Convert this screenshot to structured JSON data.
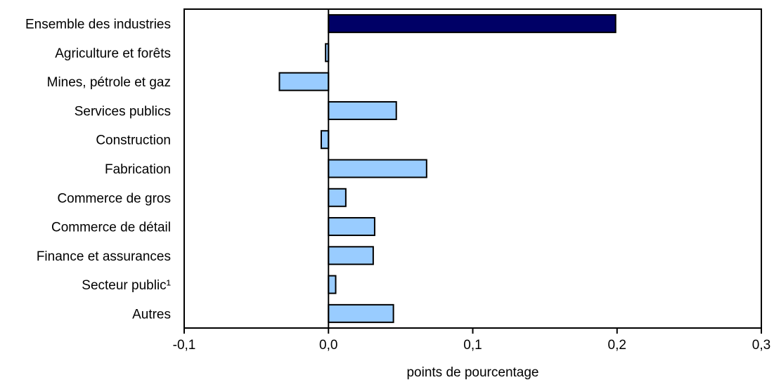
{
  "chart_data": {
    "type": "bar",
    "orientation": "horizontal",
    "categories": [
      "Ensemble des industries",
      "Agriculture et forêts",
      "Mines, pétrole et gaz",
      "Services publics",
      "Construction",
      "Fabrication",
      "Commerce de gros",
      "Commerce de détail",
      "Finance et assurances",
      "Secteur public¹",
      "Autres"
    ],
    "values": [
      0.199,
      -0.002,
      -0.034,
      0.047,
      -0.005,
      0.068,
      0.012,
      0.032,
      0.031,
      0.005,
      0.045
    ],
    "highlight_index": 0,
    "xlim": [
      -0.1,
      0.3
    ],
    "xticks": [
      -0.1,
      0.0,
      0.1,
      0.2,
      0.3
    ],
    "xtick_labels": [
      "-0,1",
      "0,0",
      "0,1",
      "0,2",
      "0,3"
    ],
    "xlabel": "points de pourcentage",
    "colors": {
      "highlight": "#000066",
      "bar": "#99ccff",
      "outline": "#000000"
    },
    "grid": false,
    "legend": "none"
  }
}
